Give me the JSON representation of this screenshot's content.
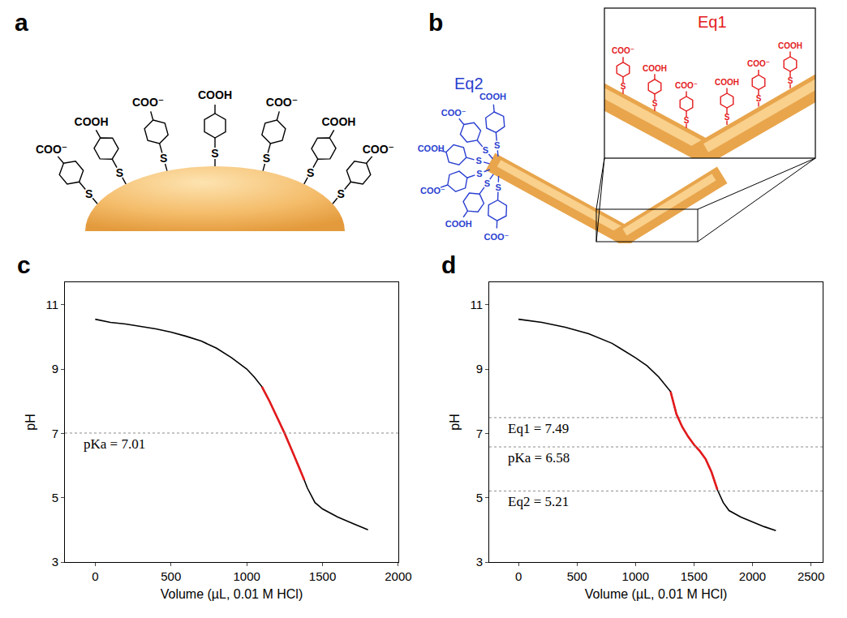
{
  "diagrams": {
    "a": {
      "label": "a",
      "linker": "S",
      "ligands": [
        "COO⁻",
        "COOH",
        "COO⁻",
        "COOH",
        "COO⁻",
        "COOH",
        "COO⁻"
      ]
    },
    "b": {
      "label": "b",
      "linker": "S",
      "groups": [
        {
          "name": "Eq2",
          "color": "#2a3fd0",
          "ligands": [
            "COOH",
            "COO⁻",
            "COOH",
            "COO⁻",
            "COOH",
            "COO⁻"
          ]
        },
        {
          "name": "Eq1",
          "color": "#e41a1c",
          "ligands": [
            "COO⁻",
            "COOH",
            "COO⁻",
            "COOH",
            "COO⁻",
            "COOH"
          ]
        }
      ]
    }
  },
  "chart_data": [
    {
      "panel": "c",
      "type": "line",
      "x_label": "Volume (µL, 0.01 M HCl)",
      "y_label": "pH",
      "xlim": [
        -200,
        2000
      ],
      "xticks": [
        0,
        500,
        1000,
        1500,
        2000
      ],
      "ylim": [
        3,
        11.7
      ],
      "yticks": [
        3,
        5,
        7,
        9,
        11
      ],
      "grid": false,
      "series": [
        {
          "color": "#000000",
          "x": [
            0,
            100,
            200,
            300,
            400,
            500,
            600,
            700,
            800,
            900,
            1000,
            1050,
            1100,
            1150,
            1200,
            1250,
            1300,
            1350,
            1400,
            1450,
            1500,
            1600,
            1700,
            1800
          ],
          "values": [
            10.55,
            10.45,
            10.4,
            10.33,
            10.25,
            10.15,
            10.02,
            9.87,
            9.65,
            9.35,
            9.0,
            8.75,
            8.45,
            8.0,
            7.5,
            7.0,
            6.45,
            5.9,
            5.3,
            4.85,
            4.65,
            4.4,
            4.2,
            4.0
          ]
        },
        {
          "color": "#e41a1c",
          "x": [
            1100,
            1150,
            1200,
            1250,
            1300,
            1350,
            1380
          ],
          "values": [
            8.45,
            8.0,
            7.5,
            7.0,
            6.45,
            5.9,
            5.55
          ]
        }
      ],
      "reference_lines": [
        {
          "value": 7.01,
          "label": "pKa = 7.01",
          "line_style": "dotted"
        }
      ]
    },
    {
      "panel": "d",
      "type": "line",
      "x_label": "Volume (µL, 0.01 M HCl)",
      "y_label": "pH",
      "xlim": [
        -250,
        2600
      ],
      "xticks": [
        0,
        500,
        1000,
        1500,
        2000,
        2500
      ],
      "ylim": [
        3,
        11.7
      ],
      "yticks": [
        3,
        5,
        7,
        9,
        11
      ],
      "grid": false,
      "series": [
        {
          "color": "#000000",
          "x": [
            0,
            200,
            400,
            600,
            800,
            1000,
            1100,
            1200,
            1300,
            1350,
            1400,
            1450,
            1500,
            1550,
            1600,
            1650,
            1700,
            1750,
            1800,
            1900,
            2000,
            2100,
            2200
          ],
          "values": [
            10.55,
            10.45,
            10.3,
            10.1,
            9.8,
            9.35,
            9.1,
            8.75,
            8.3,
            7.6,
            7.2,
            6.9,
            6.65,
            6.45,
            6.2,
            5.8,
            5.25,
            4.85,
            4.6,
            4.4,
            4.25,
            4.1,
            3.98
          ]
        },
        {
          "color": "#e41a1c",
          "x": [
            1300,
            1350,
            1400,
            1450,
            1500,
            1550,
            1600,
            1650,
            1700
          ],
          "values": [
            8.3,
            7.6,
            7.2,
            6.9,
            6.65,
            6.45,
            6.2,
            5.8,
            5.25
          ]
        }
      ],
      "reference_lines": [
        {
          "value": 7.49,
          "label": "Eq1 = 7.49",
          "line_style": "dotted"
        },
        {
          "value": 6.58,
          "label": "pKa = 6.58",
          "line_style": "dotted"
        },
        {
          "value": 5.21,
          "label": "Eq2 = 5.21",
          "line_style": "dotted"
        }
      ]
    }
  ]
}
